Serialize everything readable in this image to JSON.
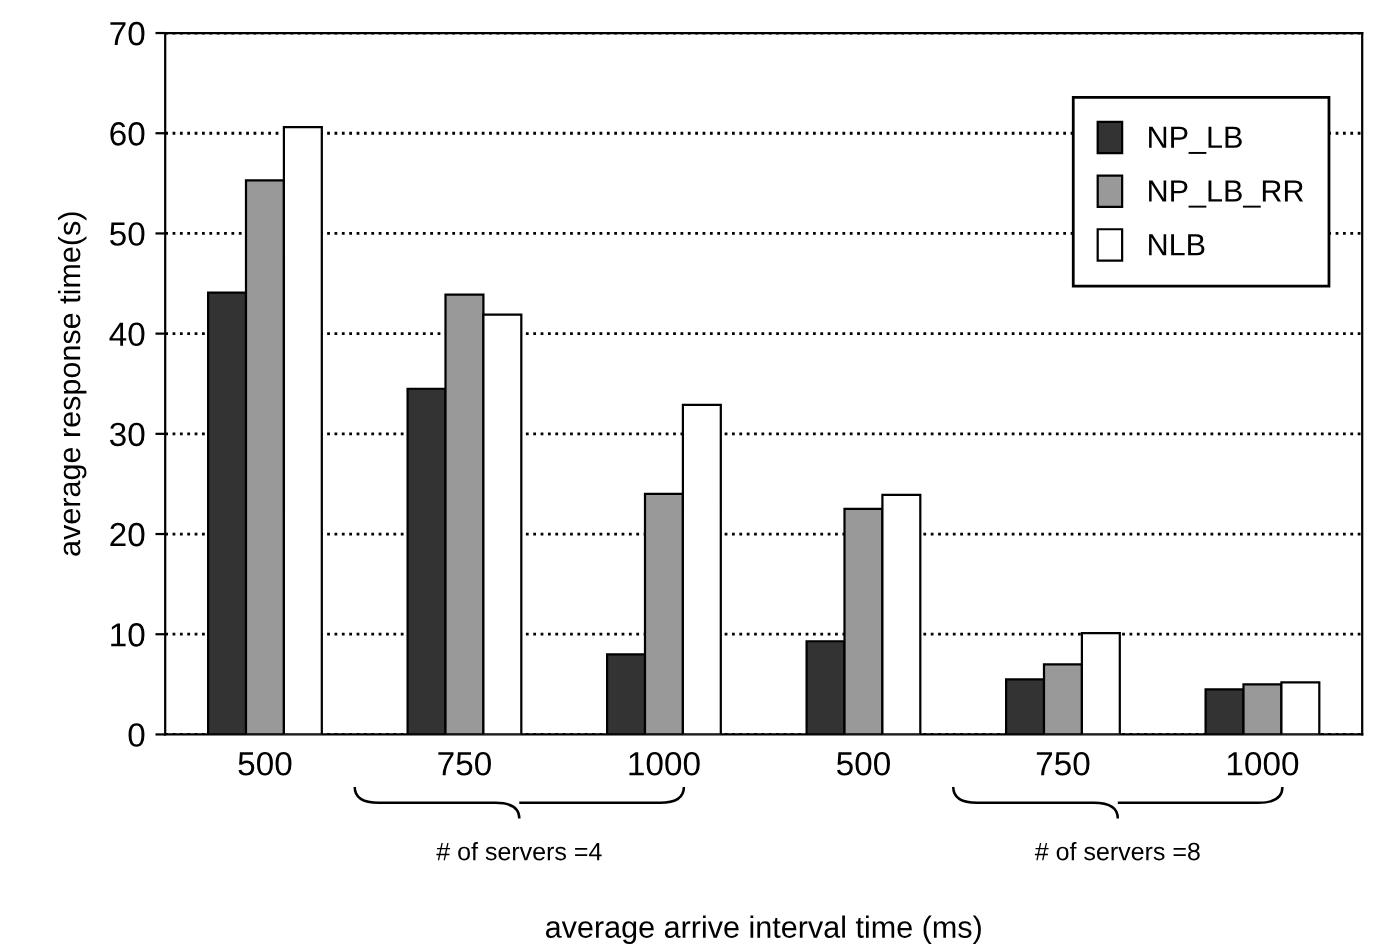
{
  "chart_data": {
    "type": "bar",
    "xlabel": "average arrive interval time (ms)",
    "ylabel": "average response time(s)",
    "categories": [
      "500",
      "750",
      "1000",
      "500",
      "750",
      "1000"
    ],
    "series": [
      {
        "name": "NP_LB",
        "color": "#333333",
        "values": [
          44.1,
          34.5,
          8.0,
          9.3,
          5.5,
          4.5
        ]
      },
      {
        "name": "NP_LB_RR",
        "color": "#999999",
        "values": [
          55.3,
          43.9,
          24.0,
          22.5,
          7.0,
          5.0
        ]
      },
      {
        "name": "NLB",
        "color": "#ffffff",
        "values": [
          60.6,
          41.9,
          32.9,
          23.9,
          10.1,
          5.2
        ]
      }
    ],
    "ylim": [
      0,
      70
    ],
    "yticks": [
      0,
      10,
      20,
      30,
      40,
      50,
      60,
      70
    ],
    "grid": "y",
    "legend": "top right",
    "annotations": [
      "# of servers =4",
      "# of servers =8"
    ]
  }
}
